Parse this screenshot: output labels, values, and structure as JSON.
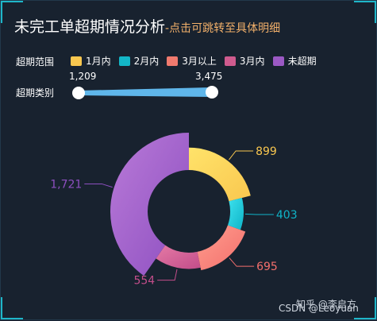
{
  "title": "未完工单超期情况分析",
  "subtitle": "-点击可跳转至具体明细",
  "filters": {
    "range_label": "超期范围",
    "category_label": "超期类别"
  },
  "legend": [
    {
      "name": "1月内",
      "color": "#f9c74f"
    },
    {
      "name": "2月内",
      "color": "#13b6c7"
    },
    {
      "name": "3月以上",
      "color": "#f07a6e"
    },
    {
      "name": "3月内",
      "color": "#cf5b8e"
    },
    {
      "name": "未超期",
      "color": "#9b59c4"
    }
  ],
  "slider": {
    "min_label": "1,209",
    "max_label": "3,475",
    "min": 1209,
    "max": 3475
  },
  "chart_data": {
    "type": "pie",
    "variant": "rose-donut",
    "slices": [
      {
        "name": "1月内",
        "value": 899,
        "label": "899",
        "color": "#f9c74f",
        "color2": "#ffe36a"
      },
      {
        "name": "2月内",
        "value": 403,
        "label": "403",
        "color": "#0fb4c8",
        "color2": "#3de2ee"
      },
      {
        "name": "3月以上",
        "value": 695,
        "label": "695",
        "color": "#f36f6c",
        "color2": "#ff9d8e"
      },
      {
        "name": "3月内",
        "value": 554,
        "label": "554",
        "color": "#c24d8a",
        "color2": "#e57aa5"
      },
      {
        "name": "未超期",
        "value": 1721,
        "label": "1,721",
        "color": "#8d4fc0",
        "color2": "#b97ad8"
      }
    ]
  },
  "watermark": {
    "line1": "知乎 @李启方",
    "line2": "CSDN @Leoyuan"
  }
}
